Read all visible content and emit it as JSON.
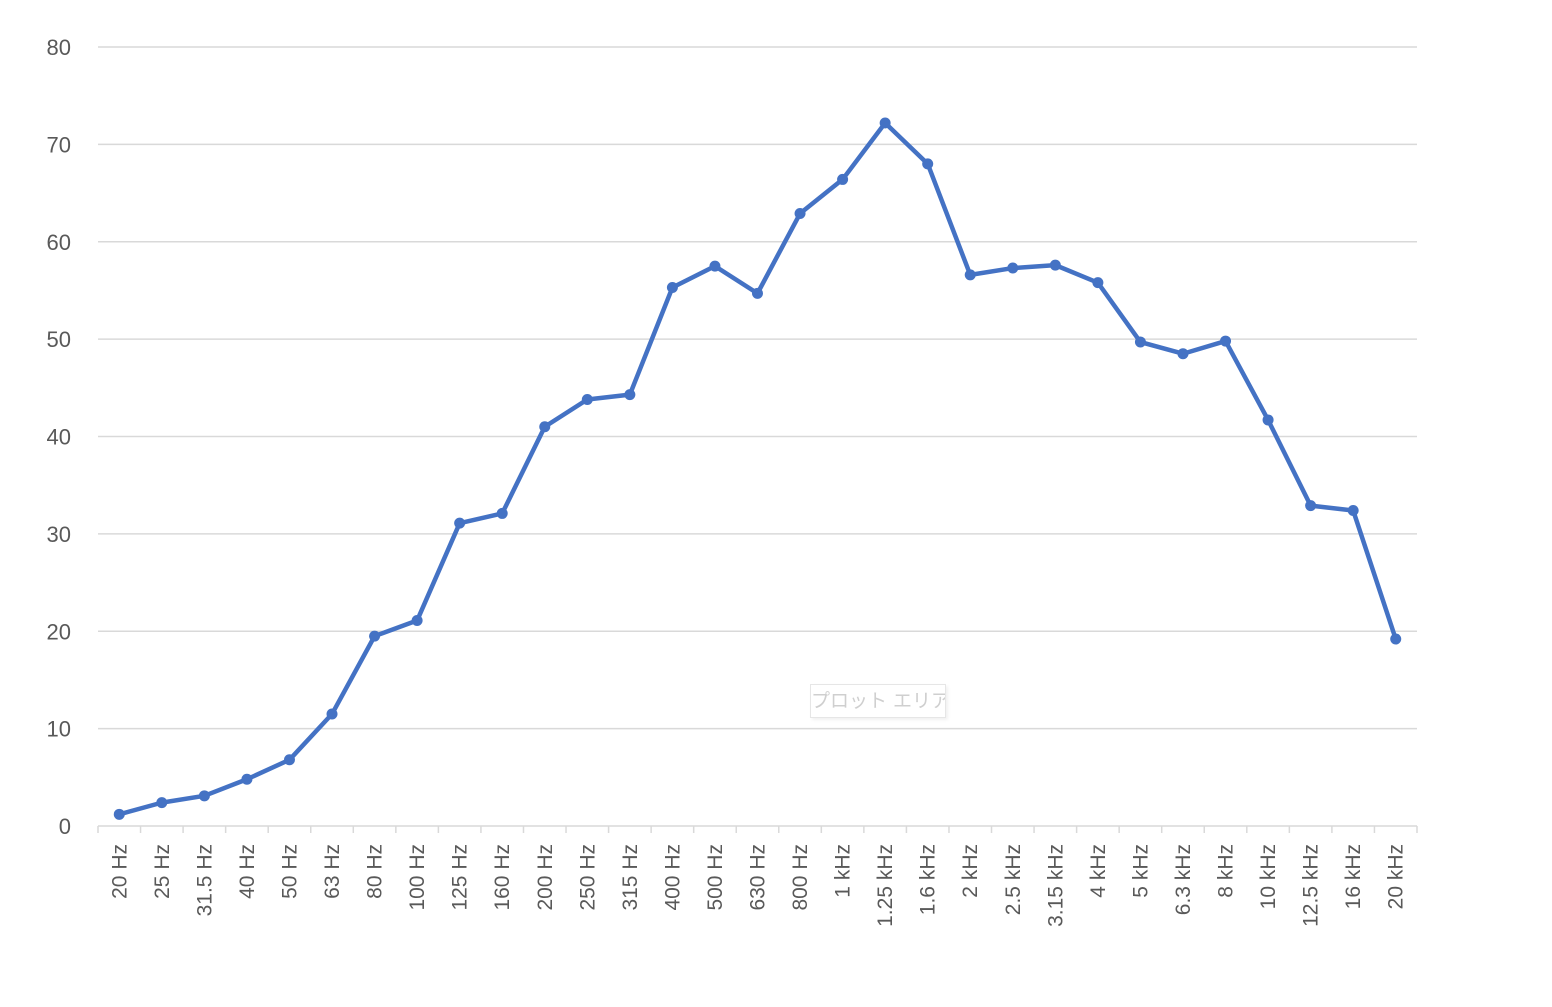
{
  "tooltip": {
    "label": "プロット エリア"
  },
  "chart_data": {
    "type": "line",
    "title": "",
    "xlabel": "",
    "ylabel": "",
    "ylim": [
      0,
      80
    ],
    "yticks": [
      0,
      10,
      20,
      30,
      40,
      50,
      60,
      70,
      80
    ],
    "grid": true,
    "legend": "none",
    "categories": [
      "20 Hz",
      "25 Hz",
      "31.5 Hz",
      "40 Hz",
      "50 Hz",
      "63 Hz",
      "80 Hz",
      "100 Hz",
      "125 Hz",
      "160 Hz",
      "200 Hz",
      "250 Hz",
      "315 Hz",
      "400 Hz",
      "500 Hz",
      "630 Hz",
      "800 Hz",
      "1 kHz",
      "1.25 kHz",
      "1.6 kHz",
      "2 kHz",
      "2.5 kHz",
      "3.15 kHz",
      "4 kHz",
      "5 kHz",
      "6.3 kHz",
      "8 kHz",
      "10 kHz",
      "12.5 kHz",
      "16 kHz",
      "20 kHz"
    ],
    "series": [
      {
        "color": "#4472c4",
        "values": [
          1.2,
          2.4,
          3.1,
          4.8,
          6.8,
          11.5,
          19.5,
          21.1,
          31.1,
          32.1,
          41.0,
          43.8,
          44.3,
          55.3,
          57.5,
          54.7,
          62.9,
          66.4,
          72.2,
          68.0,
          56.6,
          57.3,
          57.6,
          55.8,
          49.7,
          48.5,
          49.8,
          41.7,
          32.9,
          32.4,
          19.2
        ]
      }
    ]
  }
}
